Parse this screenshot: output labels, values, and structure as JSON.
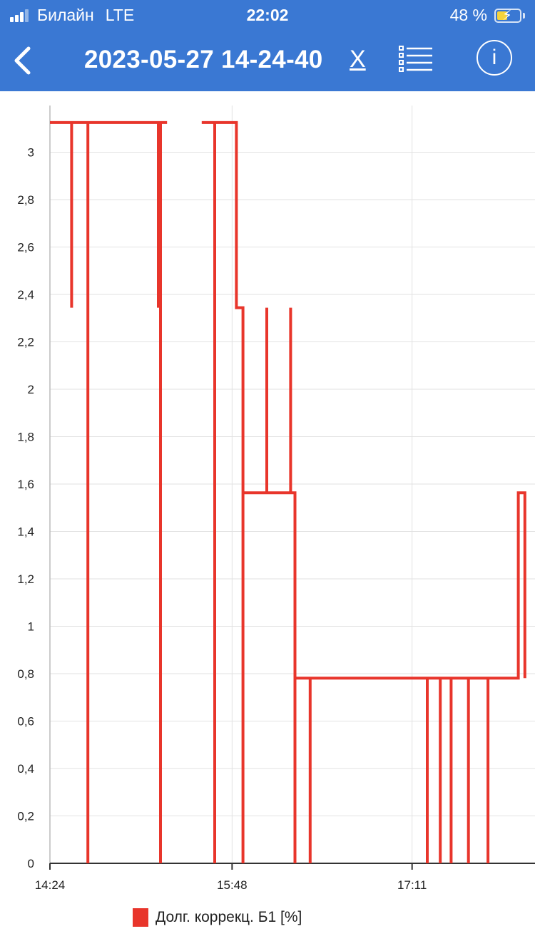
{
  "status_bar": {
    "carrier": "Билайн",
    "network": "LTE",
    "time": "22:02",
    "battery": "48 %",
    "battery_level": 0.48
  },
  "header": {
    "title": "2023-05-27 14-24-40",
    "close_label": "X",
    "back_icon": "chevron-left-icon",
    "list_icon": "list-icon",
    "info_label": "i"
  },
  "colors": {
    "header_bg": "#3a78d3",
    "series": "#e8352b",
    "grid": "#e2e2e2"
  },
  "chart_data": {
    "type": "line",
    "title": "",
    "xlabel": "",
    "ylabel": "",
    "x_ticks": [
      "14:24",
      "15:48",
      "17:11"
    ],
    "y_ticks": [
      "0",
      "0,2",
      "0,4",
      "0,6",
      "0,8",
      "1",
      "1,2",
      "1,4",
      "1,6",
      "1,8",
      "2",
      "2,2",
      "2,4",
      "2,6",
      "2,8",
      "3"
    ],
    "ylim": [
      0,
      3.2
    ],
    "xlim_minutes": [
      0,
      220
    ],
    "grid": true,
    "legend_position": "bottom",
    "series": [
      {
        "name": "Долг. коррекц. Б1 [%]",
        "color": "#e8352b",
        "segments": [
          [
            [
              0,
              3.125
            ],
            [
              10,
              3.125
            ],
            [
              10,
              2.344
            ],
            [
              10,
              3.125
            ],
            [
              17.5,
              3.125
            ],
            [
              17.5,
              0
            ],
            [
              17.5,
              3.125
            ],
            [
              50,
              3.125
            ],
            [
              50,
              2.344
            ],
            [
              50,
              3.125
            ],
            [
              51,
              3.125
            ],
            [
              51,
              0
            ],
            [
              51,
              3.125
            ],
            [
              54,
              3.125
            ]
          ],
          [
            [
              70,
              3.125
            ],
            [
              76,
              3.125
            ],
            [
              76,
              0
            ],
            [
              76,
              3.125
            ],
            [
              86,
              3.125
            ],
            [
              86,
              2.344
            ],
            [
              89,
              2.344
            ],
            [
              89,
              0
            ],
            [
              89,
              1.563
            ],
            [
              100,
              1.563
            ],
            [
              100,
              2.344
            ],
            [
              100,
              1.563
            ],
            [
              111,
              1.563
            ],
            [
              111,
              2.344
            ],
            [
              111,
              1.563
            ],
            [
              113,
              1.563
            ],
            [
              113,
              0
            ],
            [
              113,
              0.781
            ],
            [
              120,
              0.781
            ],
            [
              120,
              0
            ],
            [
              120,
              0.781
            ],
            [
              174,
              0.781
            ],
            [
              174,
              0
            ],
            [
              174,
              0.781
            ],
            [
              180,
              0.781
            ],
            [
              180,
              0
            ],
            [
              180,
              0.781
            ],
            [
              185,
              0.781
            ],
            [
              185,
              0
            ],
            [
              185,
              0.781
            ],
            [
              193,
              0.781
            ],
            [
              193,
              0
            ],
            [
              193,
              0.781
            ],
            [
              202,
              0.781
            ],
            [
              202,
              0
            ],
            [
              202,
              0.781
            ],
            [
              216,
              0.781
            ],
            [
              216,
              1.563
            ],
            [
              219,
              1.563
            ],
            [
              219,
              0.781
            ]
          ]
        ]
      }
    ]
  }
}
